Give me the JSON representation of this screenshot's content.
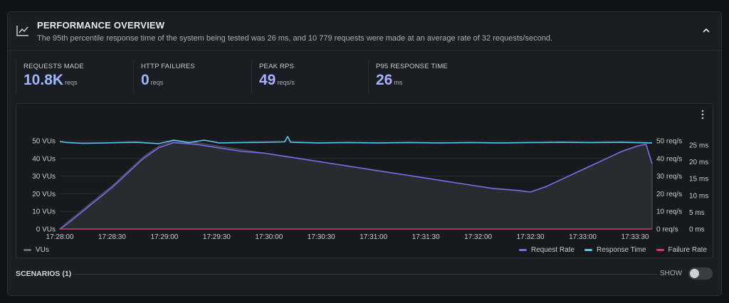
{
  "header": {
    "title": "PERFORMANCE OVERVIEW",
    "subtitle": "The 95th percentile response time of the system being tested was 26 ms, and 10 779 requests were made at an average rate of 32 requests/second."
  },
  "stats": [
    {
      "label": "REQUESTS MADE",
      "value": "10.8K",
      "unit": "reqs"
    },
    {
      "label": "HTTP FAILURES",
      "value": "0",
      "unit": "reqs"
    },
    {
      "label": "PEAK RPS",
      "value": "49",
      "unit": "reqs/s"
    },
    {
      "label": "P95 RESPONSE TIME",
      "value": "26",
      "unit": "ms"
    }
  ],
  "colors": {
    "accent": "#a0b4ff",
    "request_rate": "#7e6bea",
    "response_time": "#5bc8ee",
    "failure_rate": "#d8386a",
    "vus": "#6b6d75"
  },
  "chart_data": {
    "type": "line",
    "x_ticks": [
      "17:28:00",
      "17:28:30",
      "17:29:00",
      "17:29:30",
      "17:30:00",
      "17:30:30",
      "17:31:00",
      "17:31:30",
      "17:32:00",
      "17:32:30",
      "17:33:00",
      "17:33:30"
    ],
    "y_left_ticks": [
      "0 VUs",
      "10 VUs",
      "20 VUs",
      "30 VUs",
      "40 VUs",
      "50 VUs"
    ],
    "y_rps_ticks": [
      "0 req/s",
      "10 req/s",
      "20 req/s",
      "30 req/s",
      "40 req/s",
      "50 req/s"
    ],
    "y_ms_ticks": [
      "0 ms",
      "5 ms",
      "10 ms",
      "15 ms",
      "20 ms",
      "25 ms"
    ],
    "x_range_seconds": [
      0,
      336
    ],
    "ylim_vus": [
      0,
      50
    ],
    "ylim_rps": [
      0,
      50
    ],
    "ylim_ms": [
      0,
      25
    ],
    "series": [
      {
        "name": "VUs",
        "axis": "vus",
        "points": [
          [
            0,
            0
          ],
          [
            10,
            4
          ],
          [
            30,
            11
          ],
          [
            50,
            18
          ],
          [
            70,
            25
          ],
          [
            90,
            33
          ],
          [
            110,
            41
          ],
          [
            130,
            47
          ],
          [
            150,
            50
          ],
          [
            180,
            49
          ],
          [
            210,
            47
          ],
          [
            240,
            45
          ],
          [
            270,
            43
          ],
          [
            300,
            41
          ],
          [
            330,
            39
          ],
          [
            360,
            37
          ],
          [
            390,
            35
          ],
          [
            420,
            33
          ],
          [
            450,
            31
          ],
          [
            480,
            29
          ],
          [
            510,
            27
          ],
          [
            540,
            25
          ],
          [
            570,
            23
          ],
          [
            600,
            22
          ],
          [
            620,
            21
          ],
          [
            640,
            24
          ],
          [
            660,
            28
          ],
          [
            680,
            32
          ],
          [
            700,
            36
          ],
          [
            720,
            40
          ],
          [
            740,
            44
          ],
          [
            760,
            47
          ],
          [
            772,
            48
          ],
          [
            780,
            37
          ]
        ]
      },
      {
        "name": "Request Rate",
        "axis": "rps",
        "points": [
          [
            0,
            0
          ],
          [
            10,
            3
          ],
          [
            30,
            10
          ],
          [
            50,
            17
          ],
          [
            70,
            24
          ],
          [
            90,
            32
          ],
          [
            110,
            40
          ],
          [
            130,
            46
          ],
          [
            150,
            49
          ],
          [
            180,
            48
          ],
          [
            210,
            46
          ],
          [
            240,
            44
          ],
          [
            270,
            43
          ],
          [
            300,
            41
          ],
          [
            330,
            39
          ],
          [
            360,
            37
          ],
          [
            390,
            35
          ],
          [
            420,
            33
          ],
          [
            450,
            31
          ],
          [
            480,
            29
          ],
          [
            510,
            27
          ],
          [
            540,
            25
          ],
          [
            570,
            23
          ],
          [
            600,
            22
          ],
          [
            620,
            21
          ],
          [
            640,
            24
          ],
          [
            660,
            28
          ],
          [
            680,
            32
          ],
          [
            700,
            36
          ],
          [
            720,
            40
          ],
          [
            740,
            44
          ],
          [
            760,
            47
          ],
          [
            772,
            48
          ],
          [
            780,
            37
          ]
        ]
      },
      {
        "name": "Response Time",
        "axis": "ms",
        "points": [
          [
            0,
            24.8
          ],
          [
            10,
            24.5
          ],
          [
            30,
            24.3
          ],
          [
            60,
            24.4
          ],
          [
            100,
            24.6
          ],
          [
            130,
            24.2
          ],
          [
            150,
            25.2
          ],
          [
            170,
            24.5
          ],
          [
            190,
            25.2
          ],
          [
            210,
            24.4
          ],
          [
            240,
            24.5
          ],
          [
            270,
            24.6
          ],
          [
            296,
            24.7
          ],
          [
            300,
            26.2
          ],
          [
            304,
            24.6
          ],
          [
            340,
            24.4
          ],
          [
            380,
            24.5
          ],
          [
            420,
            24.4
          ],
          [
            460,
            24.5
          ],
          [
            500,
            24.4
          ],
          [
            540,
            24.5
          ],
          [
            580,
            24.4
          ],
          [
            620,
            24.5
          ],
          [
            660,
            24.6
          ],
          [
            700,
            24.5
          ],
          [
            740,
            24.6
          ],
          [
            780,
            24.4
          ]
        ]
      },
      {
        "name": "Failure Rate",
        "axis": "rps",
        "points": [
          [
            0,
            0
          ],
          [
            780,
            0
          ]
        ]
      }
    ],
    "legend_left": [
      "VUs"
    ],
    "legend_right": [
      "Request Rate",
      "Response Time",
      "Failure Rate"
    ]
  },
  "scenarios": {
    "label": "SCENARIOS (1)",
    "show_label": "SHOW"
  }
}
